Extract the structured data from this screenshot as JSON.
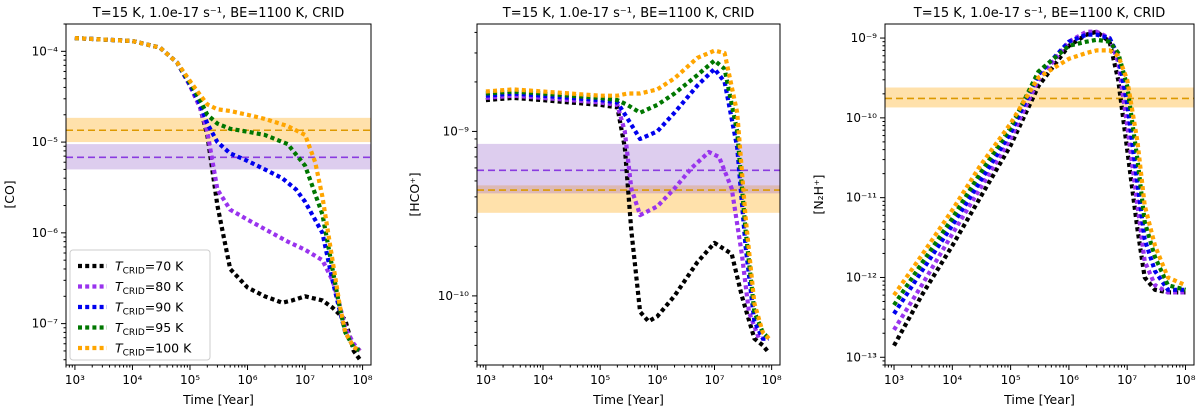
{
  "chart_data": [
    {
      "type": "line",
      "title": "T=15 K, 1.0e-17 s⁻¹, BE=1100 K, CRID",
      "xlabel": "Time [Year]",
      "ylabel": "[CO]",
      "xscale": "log",
      "yscale": "log",
      "xlim": [
        700,
        140000000
      ],
      "ylim": [
        3.5e-08,
        0.0002
      ],
      "xticks": [
        {
          "v": 1000.0,
          "label": "10³"
        },
        {
          "v": 10000.0,
          "label": "10⁴"
        },
        {
          "v": 100000.0,
          "label": "10⁵"
        },
        {
          "v": 1000000.0,
          "label": "10⁶"
        },
        {
          "v": 10000000.0,
          "label": "10⁷"
        },
        {
          "v": 100000000.0,
          "label": "10⁸"
        }
      ],
      "yticks": [
        {
          "v": 1e-07,
          "label": "10⁻⁷"
        },
        {
          "v": 1e-06,
          "label": "10⁻⁶"
        },
        {
          "v": 1e-05,
          "label": "10⁻⁵"
        },
        {
          "v": 0.0001,
          "label": "10⁻⁴"
        }
      ],
      "bands": [
        {
          "name": "obs-orange",
          "low": 1e-05,
          "high": 1.85e-05,
          "line": 1.35e-05,
          "color": "#ffa500"
        },
        {
          "name": "obs-purple",
          "low": 5e-06,
          "high": 9.5e-06,
          "line": 6.8e-06,
          "color": "#9966cc"
        }
      ],
      "legend": {
        "position": "lower-left"
      },
      "series": [
        {
          "name": "70 K",
          "color": "#000000",
          "x": [
            1000.0,
            10000.0,
            30000.0,
            60000.0,
            100000.0,
            150000.0,
            200000.0,
            300000.0,
            500000.0,
            1000000.0,
            2000000.0,
            4000000.0,
            6000000.0,
            10000000.0,
            20000000.0,
            30000000.0,
            50000000.0,
            70000000.0,
            90000000.0
          ],
          "y": [
            0.00014,
            0.00013,
            0.00011,
            7.5e-05,
            4.2e-05,
            2.4e-05,
            1.2e-05,
            2e-06,
            4e-07,
            2.5e-07,
            2e-07,
            1.7e-07,
            1.8e-07,
            2e-07,
            1.8e-07,
            1.5e-07,
            1.1e-07,
            5e-08,
            4e-08
          ]
        },
        {
          "name": "80 K",
          "color": "#9933ee",
          "x": [
            1000.0,
            10000.0,
            30000.0,
            60000.0,
            100000.0,
            150000.0,
            200000.0,
            300000.0,
            500000.0,
            1000000.0,
            2000000.0,
            5000000.0,
            10000000.0,
            20000000.0,
            30000000.0,
            40000000.0,
            50000000.0,
            70000000.0,
            90000000.0
          ],
          "y": [
            0.00014,
            0.00013,
            0.00011,
            7.5e-05,
            4.2e-05,
            2.4e-05,
            1.3e-05,
            3e-06,
            1.8e-06,
            1.4e-06,
            1.1e-06,
            8e-07,
            6.5e-07,
            5e-07,
            3e-07,
            1.6e-07,
            9e-08,
            6e-08,
            5e-08
          ]
        },
        {
          "name": "90 K",
          "color": "#0000ee",
          "x": [
            1000.0,
            10000.0,
            30000.0,
            60000.0,
            100000.0,
            150000.0,
            200000.0,
            300000.0,
            500000.0,
            1000000.0,
            2000000.0,
            4000000.0,
            7000000.0,
            10000000.0,
            20000000.0,
            30000000.0,
            40000000.0,
            50000000.0,
            70000000.0,
            90000000.0
          ],
          "y": [
            0.00014,
            0.00013,
            0.00011,
            7.5e-05,
            4.3e-05,
            2.6e-05,
            1.6e-05,
            1e-05,
            7.5e-06,
            6.2e-06,
            5e-06,
            4e-06,
            3e-06,
            2.2e-06,
            1e-06,
            3e-07,
            1.4e-07,
            8e-08,
            5.5e-08,
            5e-08
          ]
        },
        {
          "name": "95 K",
          "color": "#007700",
          "x": [
            1000.0,
            10000.0,
            30000.0,
            60000.0,
            100000.0,
            150000.0,
            200000.0,
            300000.0,
            500000.0,
            1000000.0,
            2000000.0,
            5000000.0,
            10000000.0,
            20000000.0,
            30000000.0,
            40000000.0,
            50000000.0,
            70000000.0,
            90000000.0
          ],
          "y": [
            0.00014,
            0.00013,
            0.00011,
            7.5e-05,
            4.5e-05,
            2.9e-05,
            2e-05,
            1.6e-05,
            1.4e-05,
            1.3e-05,
            1.2e-05,
            9.5e-06,
            5.5e-06,
            1.6e-06,
            4e-07,
            1.5e-07,
            8e-08,
            5.5e-08,
            5e-08
          ]
        },
        {
          "name": "100 K",
          "color": "#ffa500",
          "x": [
            1000.0,
            10000.0,
            30000.0,
            60000.0,
            100000.0,
            150000.0,
            200000.0,
            300000.0,
            500000.0,
            1000000.0,
            2000000.0,
            5000000.0,
            10000000.0,
            15000000.0,
            20000000.0,
            30000000.0,
            40000000.0,
            50000000.0,
            70000000.0,
            90000000.0
          ],
          "y": [
            0.00014,
            0.00013,
            0.00011,
            7.5e-05,
            4.7e-05,
            3.3e-05,
            2.6e-05,
            2.3e-05,
            2.2e-05,
            2e-05,
            1.8e-05,
            1.5e-05,
            1.2e-05,
            6e-06,
            2.5e-06,
            5e-07,
            1.6e-07,
            8e-08,
            5.5e-08,
            5e-08
          ]
        }
      ]
    },
    {
      "type": "line",
      "title": "T=15 K, 1.0e-17 s⁻¹, BE=1100 K, CRID",
      "xlabel": "Time [Year]",
      "ylabel": "[HCO⁺]",
      "xscale": "log",
      "yscale": "log",
      "xlim": [
        700,
        140000000
      ],
      "ylim": [
        3.8e-11,
        4.5e-09
      ],
      "xticks": [
        {
          "v": 1000.0,
          "label": "10³"
        },
        {
          "v": 10000.0,
          "label": "10⁴"
        },
        {
          "v": 100000.0,
          "label": "10⁵"
        },
        {
          "v": 1000000.0,
          "label": "10⁶"
        },
        {
          "v": 10000000.0,
          "label": "10⁷"
        },
        {
          "v": 100000000.0,
          "label": "10⁸"
        }
      ],
      "yticks": [
        {
          "v": 1e-10,
          "label": "10⁻¹⁰"
        },
        {
          "v": 1e-09,
          "label": "10⁻⁹"
        }
      ],
      "bands": [
        {
          "name": "obs-orange",
          "low": 3.2e-10,
          "high": 4.7e-10,
          "line": 4.4e-10,
          "color": "#ffa500"
        },
        {
          "name": "obs-purple",
          "low": 4.2e-10,
          "high": 8.4e-10,
          "line": 5.8e-10,
          "color": "#9966cc"
        }
      ],
      "series": [
        {
          "name": "70 K",
          "color": "#000000",
          "x": [
            1000.0,
            3000.0,
            10000.0,
            30000.0,
            100000.0,
            200000.0,
            270000.0,
            350000.0,
            500000.0,
            700000.0,
            1000000.0,
            2000000.0,
            5000000.0,
            10000000.0,
            20000000.0,
            30000000.0,
            50000000.0,
            70000000.0,
            90000000.0
          ],
          "y": [
            1.55e-09,
            1.6e-09,
            1.55e-09,
            1.5e-09,
            1.45e-09,
            1.4e-09,
            8e-10,
            2.5e-10,
            8e-11,
            7e-11,
            7.5e-11,
            1e-10,
            1.6e-10,
            2.1e-10,
            1.8e-10,
            1e-10,
            5.5e-11,
            5e-11,
            4.5e-11
          ]
        },
        {
          "name": "80 K",
          "color": "#9933ee",
          "x": [
            1000.0,
            3000.0,
            10000.0,
            30000.0,
            100000.0,
            200000.0,
            270000.0,
            350000.0,
            500000.0,
            1000000.0,
            2000000.0,
            4000000.0,
            8000000.0,
            12000000.0,
            20000000.0,
            30000000.0,
            40000000.0,
            60000000.0,
            90000000.0
          ],
          "y": [
            1.6e-09,
            1.65e-09,
            1.6e-09,
            1.55e-09,
            1.5e-09,
            1.45e-09,
            1e-09,
            4.5e-10,
            3.1e-10,
            3.5e-10,
            4.5e-10,
            6e-10,
            7.5e-10,
            7e-10,
            4.5e-10,
            1.8e-10,
            8e-11,
            5.5e-11,
            5.5e-11
          ]
        },
        {
          "name": "90 K",
          "color": "#0000ee",
          "x": [
            1000.0,
            3000.0,
            10000.0,
            30000.0,
            100000.0,
            200000.0,
            300000.0,
            500000.0,
            1000000.0,
            2000000.0,
            5000000.0,
            10000000.0,
            15000000.0,
            25000000.0,
            35000000.0,
            50000000.0,
            70000000.0,
            90000000.0
          ],
          "y": [
            1.65e-09,
            1.7e-09,
            1.65e-09,
            1.6e-09,
            1.55e-09,
            1.5e-09,
            1.2e-09,
            9e-10,
            1e-09,
            1.3e-09,
            1.9e-09,
            2.4e-09,
            2e-09,
            8e-10,
            2e-10,
            7e-11,
            5.5e-11,
            5.5e-11
          ]
        },
        {
          "name": "95 K",
          "color": "#007700",
          "x": [
            1000.0,
            3000.0,
            10000.0,
            30000.0,
            100000.0,
            200000.0,
            300000.0,
            500000.0,
            1000000.0,
            2000000.0,
            5000000.0,
            10000000.0,
            15000000.0,
            25000000.0,
            35000000.0,
            50000000.0,
            70000000.0,
            90000000.0
          ],
          "y": [
            1.7e-09,
            1.75e-09,
            1.7e-09,
            1.65e-09,
            1.6e-09,
            1.55e-09,
            1.45e-09,
            1.3e-09,
            1.45e-09,
            1.7e-09,
            2.2e-09,
            2.7e-09,
            2.4e-09,
            1e-09,
            2.5e-10,
            8e-11,
            6e-11,
            5.5e-11
          ]
        },
        {
          "name": "100 K",
          "color": "#ffa500",
          "x": [
            1000.0,
            3000.0,
            10000.0,
            30000.0,
            100000.0,
            200000.0,
            300000.0,
            500000.0,
            1000000.0,
            2000000.0,
            5000000.0,
            10000000.0,
            15000000.0,
            25000000.0,
            35000000.0,
            50000000.0,
            70000000.0,
            90000000.0
          ],
          "y": [
            1.75e-09,
            1.8e-09,
            1.75e-09,
            1.7e-09,
            1.65e-09,
            1.65e-09,
            1.7e-09,
            1.7e-09,
            1.8e-09,
            2.1e-09,
            2.8e-09,
            3.1e-09,
            3e-09,
            1.3e-09,
            3e-10,
            9e-11,
            6e-11,
            5.5e-11
          ]
        }
      ]
    },
    {
      "type": "line",
      "title": "T=15 K, 1.0e-17 s⁻¹, BE=1100 K, CRID",
      "xlabel": "Time [Year]",
      "ylabel": "[N₂H⁺]",
      "xscale": "log",
      "yscale": "log",
      "xlim": [
        700,
        140000000
      ],
      "ylim": [
        8e-14,
        1.5e-09
      ],
      "xticks": [
        {
          "v": 1000.0,
          "label": "10³"
        },
        {
          "v": 10000.0,
          "label": "10⁴"
        },
        {
          "v": 100000.0,
          "label": "10⁵"
        },
        {
          "v": 1000000.0,
          "label": "10⁶"
        },
        {
          "v": 10000000.0,
          "label": "10⁷"
        },
        {
          "v": 100000000.0,
          "label": "10⁸"
        }
      ],
      "yticks": [
        {
          "v": 1e-13,
          "label": "10⁻¹³"
        },
        {
          "v": 1e-12,
          "label": "10⁻¹²"
        },
        {
          "v": 1e-11,
          "label": "10⁻¹¹"
        },
        {
          "v": 1e-10,
          "label": "10⁻¹⁰"
        },
        {
          "v": 1e-09,
          "label": "10⁻⁹"
        }
      ],
      "bands": [
        {
          "name": "obs-orange",
          "low": 1.35e-10,
          "high": 2.4e-10,
          "line": 1.75e-10,
          "color": "#ffa500"
        }
      ],
      "series": [
        {
          "name": "70 K",
          "color": "#000000",
          "x": [
            1000.0,
            3000.0,
            10000.0,
            30000.0,
            100000.0,
            300000.0,
            1000000.0,
            2000000.0,
            3000000.0,
            5000000.0,
            7000000.0,
            10000000.0,
            15000000.0,
            20000000.0,
            30000000.0,
            50000000.0,
            100000000.0
          ],
          "y": [
            1.4e-13,
            6e-13,
            2.5e-12,
            1e-11,
            4.5e-11,
            2.5e-10,
            8e-10,
            1.1e-09,
            1.2e-09,
            9e-10,
            3e-10,
            4e-11,
            4e-12,
            1e-12,
            7e-13,
            6.5e-13,
            6.5e-13
          ]
        },
        {
          "name": "80 K",
          "color": "#9933ee",
          "x": [
            1000.0,
            3000.0,
            10000.0,
            30000.0,
            100000.0,
            300000.0,
            1000000.0,
            2000000.0,
            3000000.0,
            5000000.0,
            7000000.0,
            10000000.0,
            15000000.0,
            20000000.0,
            30000000.0,
            50000000.0,
            100000000.0
          ],
          "y": [
            2.2e-13,
            8e-13,
            3.5e-12,
            1.3e-11,
            5.5e-11,
            3e-10,
            9e-10,
            1.2e-09,
            1.2e-09,
            1e-09,
            5e-10,
            8e-11,
            8e-12,
            1.6e-12,
            8e-13,
            6.5e-13,
            6.5e-13
          ]
        },
        {
          "name": "90 K",
          "color": "#0000ee",
          "x": [
            1000.0,
            3000.0,
            10000.0,
            30000.0,
            100000.0,
            300000.0,
            1000000.0,
            2000000.0,
            3000000.0,
            5000000.0,
            7000000.0,
            10000000.0,
            15000000.0,
            20000000.0,
            30000000.0,
            50000000.0,
            100000000.0
          ],
          "y": [
            3.5e-13,
            1.2e-12,
            4.5e-12,
            1.6e-11,
            6.5e-11,
            3.5e-10,
            9e-10,
            1.1e-09,
            1.1e-09,
            1e-09,
            6e-10,
            1.5e-10,
            1.5e-11,
            3e-12,
            1.2e-12,
            7e-13,
            7e-13
          ]
        },
        {
          "name": "95 K",
          "color": "#007700",
          "x": [
            1000.0,
            3000.0,
            10000.0,
            30000.0,
            100000.0,
            300000.0,
            1000000.0,
            2000000.0,
            3000000.0,
            5000000.0,
            7000000.0,
            10000000.0,
            15000000.0,
            20000000.0,
            30000000.0,
            50000000.0,
            100000000.0
          ],
          "y": [
            4.5e-13,
            1.5e-12,
            5.5e-12,
            2e-11,
            7.5e-11,
            3.8e-10,
            8e-10,
            9e-10,
            9.5e-10,
            9e-10,
            6.5e-10,
            2.5e-10,
            3e-11,
            5e-12,
            1.8e-12,
            8e-13,
            7e-13
          ]
        },
        {
          "name": "100 K",
          "color": "#ffa500",
          "x": [
            1000.0,
            3000.0,
            10000.0,
            30000.0,
            100000.0,
            300000.0,
            1000000.0,
            2000000.0,
            3000000.0,
            5000000.0,
            7000000.0,
            10000000.0,
            15000000.0,
            20000000.0,
            30000000.0,
            50000000.0,
            100000000.0
          ],
          "y": [
            6e-13,
            1.9e-12,
            7e-12,
            2.5e-11,
            8.5e-11,
            3.2e-10,
            5.5e-10,
            6.5e-10,
            7e-10,
            7e-10,
            6e-10,
            3e-10,
            5e-11,
            8e-12,
            2.5e-12,
            1e-12,
            8e-13
          ]
        }
      ]
    }
  ]
}
